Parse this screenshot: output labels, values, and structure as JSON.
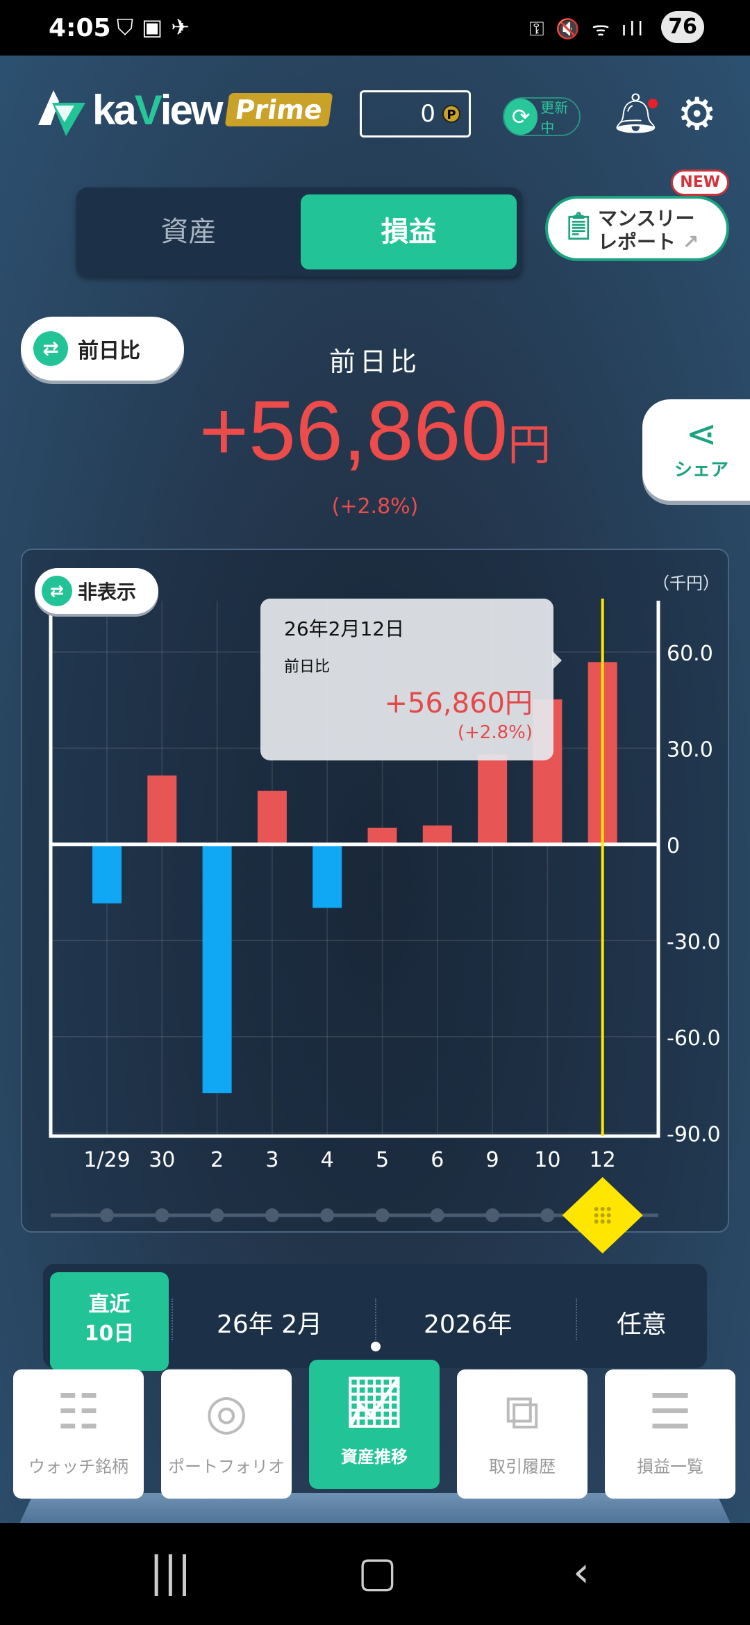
{
  "status_bar": {
    "time": "4:05",
    "battery": "76"
  },
  "header": {
    "logo_text_a": "ka",
    "logo_text_b": "V",
    "logo_text_c": "iew",
    "logo_badge": "Prime",
    "points": "0",
    "points_unit": "P",
    "update_label": "更新中"
  },
  "segment": {
    "tabs": [
      {
        "label": "資産",
        "active": false
      },
      {
        "label": "損益",
        "active": true
      }
    ]
  },
  "monthly_report": {
    "label_line1": "マンスリー",
    "label_line2": "レポート",
    "badge": "NEW"
  },
  "compare_toggle": {
    "label": "前日比"
  },
  "summary": {
    "title": "前日比",
    "value": "+56,860",
    "unit": "円",
    "percent": "(+2.8%)"
  },
  "share": {
    "label": "シェア"
  },
  "chart_toggle": {
    "label": "非表示"
  },
  "colors": {
    "positive": "#e85555",
    "negative": "#10a8f5",
    "accent": "#22c397",
    "cursor": "#ffe600"
  },
  "chart_data": {
    "type": "bar",
    "unit_label": "（千円）",
    "categories": [
      "1/29",
      "30",
      "2",
      "3",
      "4",
      "5",
      "6",
      "9",
      "10",
      "12"
    ],
    "values": [
      -18.4,
      21.5,
      -77.6,
      16.7,
      -19.8,
      5.2,
      5.9,
      28,
      45.2,
      56.86
    ],
    "yticks": [
      "60.0",
      "30.0",
      "0",
      "-30.0",
      "-60.0",
      "-90.0"
    ],
    "ytick_values": [
      60,
      30,
      0,
      -30,
      -60,
      -90
    ],
    "ylim": [
      -91,
      76
    ],
    "grid": true,
    "selected_index": 9
  },
  "tooltip": {
    "date": "26年2月12日",
    "label": "前日比",
    "value": "+56,860円",
    "percent": "(+2.8%)"
  },
  "period": {
    "options": [
      {
        "label_line1": "直近",
        "label_line2": "10日",
        "active": true
      },
      {
        "label": "26年 2月"
      },
      {
        "label": "2026年"
      },
      {
        "label": "任意"
      }
    ]
  },
  "bottom_nav": [
    {
      "label": "ウォッチ銘柄",
      "icon": "watchlist-icon"
    },
    {
      "label": "ポートフォリオ",
      "icon": "portfolio-icon"
    },
    {
      "label": "資産推移",
      "icon": "chart-trend-icon",
      "active": true
    },
    {
      "label": "取引履歴",
      "icon": "history-icon"
    },
    {
      "label": "損益一覧",
      "icon": "list-icon"
    }
  ]
}
